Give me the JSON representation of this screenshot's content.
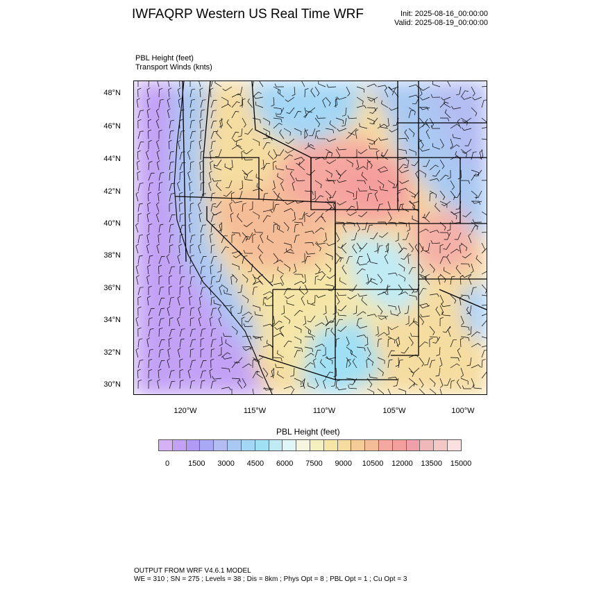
{
  "header": {
    "title": "IWFAQRP Western US Real Time WRF",
    "init": "Init: 2025-08-16_00:00:00",
    "valid": "Valid: 2025-08-19_00:00:00"
  },
  "fields": {
    "line1": "PBL Height   (feet)",
    "line2": "Transport Winds   (knts)"
  },
  "map": {
    "lat_labels": [
      "48°N",
      "46°N",
      "44°N",
      "42°N",
      "40°N",
      "38°N",
      "36°N",
      "34°N",
      "32°N",
      "30°N"
    ],
    "lon_labels": [
      "120°W",
      "115°W",
      "110°W",
      "105°W",
      "100°W"
    ]
  },
  "colorbar": {
    "title": "PBL Height  (feet)",
    "labels": [
      "0",
      "1500",
      "3000",
      "4500",
      "6000",
      "7500",
      "9000",
      "10500",
      "12000",
      "13500",
      "15000"
    ],
    "colors": [
      "#d6b2f5",
      "#c3a2f5",
      "#b09af5",
      "#a8a8f5",
      "#b4bdf2",
      "#a9c9f2",
      "#a4d6f5",
      "#a0e0f5",
      "#c0ebf5",
      "#e0f5f5",
      "#f5f5e0",
      "#f5f0c0",
      "#f5e6a8",
      "#f5dca0",
      "#f5cc98",
      "#f5bc98",
      "#f5a8a0",
      "#f59e9e",
      "#f0a0a8",
      "#f0b8b8",
      "#f5c8c8",
      "#fae0e0"
    ]
  },
  "footer": {
    "line1": "OUTPUT FROM WRF V4.6.1 MODEL",
    "line2": "WE = 310 ; SN = 275 ; Levels = 38 ; Dis = 8km ; Phys Opt = 8 ; PBL Opt = 1 ; Cu Opt = 3"
  }
}
